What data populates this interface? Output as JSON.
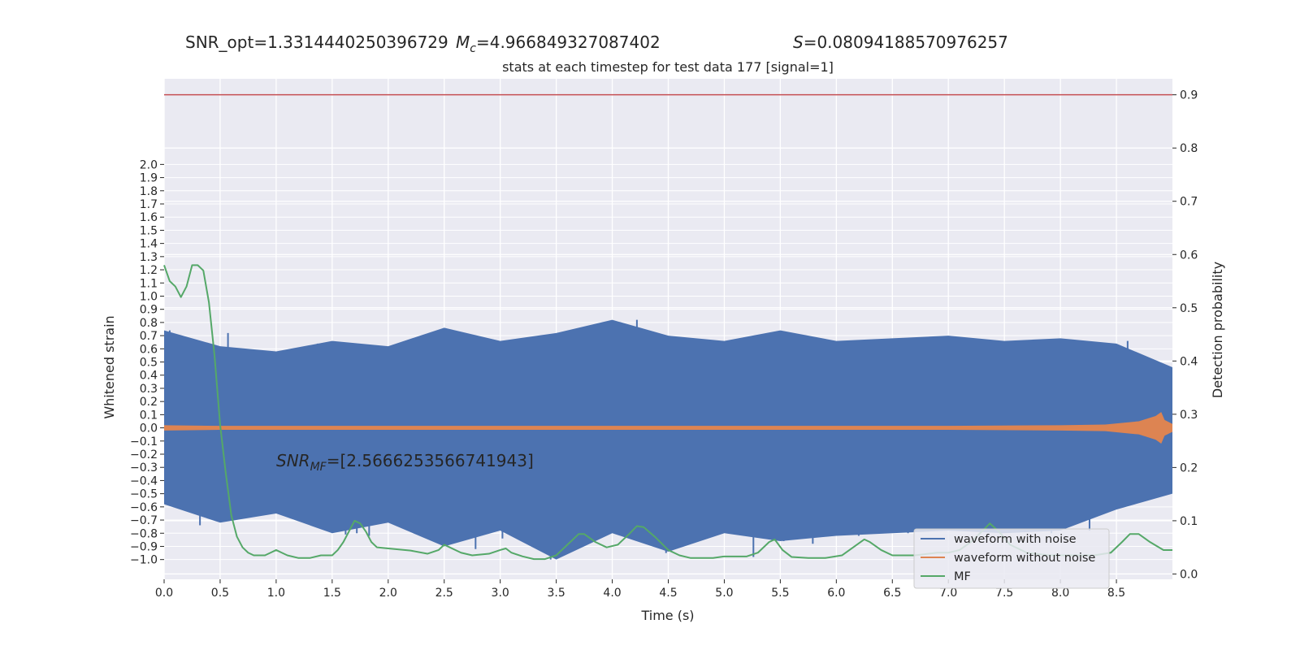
{
  "chart_data": {
    "type": "line",
    "title_parts": {
      "snr_opt": "SNR_opt=1.3314440250396729",
      "mc_symbol": "M",
      "mc_sub": "c",
      "mc_value": "=4.966849327087402",
      "s_symbol": "S",
      "s_value": "=0.08094188570976257"
    },
    "subtitle": "stats at each timestep for test data 177 [signal=1]",
    "annotation": {
      "snr_symbol": "SNR",
      "snr_sub": "MF",
      "snr_value": "=[2.5666253566741943]"
    },
    "xlabel": "Time (s)",
    "ylabel_left": "Whitened strain",
    "ylabel_right": "Detection probability",
    "xlim": [
      0.0,
      9.0
    ],
    "ylim_left": [
      -1.15,
      2.65
    ],
    "ylim_right": [
      -0.01,
      0.93
    ],
    "x_ticks": [
      "0.0",
      "0.5",
      "1.0",
      "1.5",
      "2.0",
      "2.5",
      "3.0",
      "3.5",
      "4.0",
      "4.5",
      "5.0",
      "5.5",
      "6.0",
      "6.5",
      "7.0",
      "7.5",
      "8.0",
      "8.5"
    ],
    "y_left_ticks": [
      "2.0",
      "1.9",
      "1.8",
      "1.7",
      "1.6",
      "1.5",
      "1.4",
      "1.3",
      "1.2",
      "1.1",
      "1.0",
      "0.9",
      "0.8",
      "0.7",
      "0.6",
      "0.5",
      "0.4",
      "0.3",
      "0.2",
      "0.1",
      "0.0",
      "−0.1",
      "−0.2",
      "−0.3",
      "−0.4",
      "−0.5",
      "−0.6",
      "−0.7",
      "−0.8",
      "−0.9",
      "−1.0"
    ],
    "y_right_ticks": [
      "0.9",
      "0.8",
      "0.7",
      "0.6",
      "0.5",
      "0.4",
      "0.3",
      "0.2",
      "0.1",
      "0.0"
    ],
    "threshold": 0.9,
    "grid": true,
    "legend_position": "bottom-right",
    "series": [
      {
        "name": "waveform with noise",
        "color": "#4c72b0",
        "axis": "left",
        "band": [
          [
            0.0,
            -0.58,
            0.74
          ],
          [
            0.5,
            -0.72,
            0.62
          ],
          [
            1.0,
            -0.65,
            0.58
          ],
          [
            1.5,
            -0.8,
            0.66
          ],
          [
            2.0,
            -0.72,
            0.62
          ],
          [
            2.5,
            -0.9,
            0.76
          ],
          [
            3.0,
            -0.78,
            0.66
          ],
          [
            3.5,
            -1.0,
            0.72
          ],
          [
            4.0,
            -0.8,
            0.82
          ],
          [
            4.5,
            -0.94,
            0.7
          ],
          [
            5.0,
            -0.8,
            0.66
          ],
          [
            5.5,
            -0.86,
            0.74
          ],
          [
            6.0,
            -0.82,
            0.66
          ],
          [
            6.5,
            -0.8,
            0.68
          ],
          [
            7.0,
            -0.78,
            0.7
          ],
          [
            7.5,
            -0.8,
            0.66
          ],
          [
            8.0,
            -0.78,
            0.68
          ],
          [
            8.5,
            -0.62,
            0.64
          ],
          [
            9.0,
            -0.5,
            0.46
          ]
        ],
        "spikes": [
          [
            0.05,
            0.74
          ],
          [
            0.32,
            -0.74
          ],
          [
            0.57,
            0.72
          ],
          [
            1.37,
            0.64
          ],
          [
            1.62,
            -0.81
          ],
          [
            1.72,
            -0.8
          ],
          [
            1.83,
            -0.82
          ],
          [
            2.4,
            -0.86
          ],
          [
            2.47,
            0.66
          ],
          [
            2.78,
            -0.92
          ],
          [
            3.02,
            -0.84
          ],
          [
            3.25,
            -0.78
          ],
          [
            3.45,
            -1.0
          ],
          [
            3.76,
            0.74
          ],
          [
            4.22,
            0.82
          ],
          [
            4.48,
            -0.95
          ],
          [
            4.63,
            -0.84
          ],
          [
            5.26,
            -0.98
          ],
          [
            5.53,
            -0.86
          ],
          [
            5.79,
            -0.88
          ],
          [
            6.2,
            -0.82
          ],
          [
            6.64,
            -0.8
          ],
          [
            7.1,
            -0.78
          ],
          [
            7.48,
            -0.8
          ],
          [
            7.92,
            -0.8
          ],
          [
            8.26,
            -0.78
          ],
          [
            8.6,
            0.66
          ]
        ]
      },
      {
        "name": "waveform without noise",
        "color": "#dd8452",
        "axis": "left",
        "envelope": [
          [
            0.0,
            0.02
          ],
          [
            0.5,
            0.015
          ],
          [
            1.0,
            0.015
          ],
          [
            2.0,
            0.015
          ],
          [
            3.0,
            0.015
          ],
          [
            4.0,
            0.015
          ],
          [
            5.0,
            0.015
          ],
          [
            6.0,
            0.015
          ],
          [
            7.0,
            0.015
          ],
          [
            8.0,
            0.02
          ],
          [
            8.4,
            0.025
          ],
          [
            8.7,
            0.05
          ],
          [
            8.85,
            0.09
          ],
          [
            8.9,
            0.12
          ],
          [
            8.93,
            0.06
          ],
          [
            9.0,
            0.03
          ]
        ]
      },
      {
        "name": "MF",
        "color": "#55a868",
        "axis": "right",
        "points": [
          [
            0.0,
            0.58
          ],
          [
            0.05,
            0.55
          ],
          [
            0.1,
            0.54
          ],
          [
            0.15,
            0.52
          ],
          [
            0.2,
            0.54
          ],
          [
            0.25,
            0.58
          ],
          [
            0.3,
            0.58
          ],
          [
            0.35,
            0.57
          ],
          [
            0.4,
            0.51
          ],
          [
            0.45,
            0.41
          ],
          [
            0.5,
            0.28
          ],
          [
            0.55,
            0.19
          ],
          [
            0.6,
            0.11
          ],
          [
            0.65,
            0.07
          ],
          [
            0.7,
            0.05
          ],
          [
            0.75,
            0.04
          ],
          [
            0.8,
            0.035
          ],
          [
            0.85,
            0.035
          ],
          [
            0.9,
            0.035
          ],
          [
            0.95,
            0.04
          ],
          [
            1.0,
            0.045
          ],
          [
            1.05,
            0.04
          ],
          [
            1.1,
            0.035
          ],
          [
            1.2,
            0.03
          ],
          [
            1.3,
            0.03
          ],
          [
            1.4,
            0.035
          ],
          [
            1.5,
            0.035
          ],
          [
            1.55,
            0.045
          ],
          [
            1.6,
            0.06
          ],
          [
            1.65,
            0.08
          ],
          [
            1.7,
            0.1
          ],
          [
            1.75,
            0.095
          ],
          [
            1.8,
            0.08
          ],
          [
            1.85,
            0.06
          ],
          [
            1.9,
            0.05
          ],
          [
            2.0,
            0.048
          ],
          [
            2.2,
            0.044
          ],
          [
            2.35,
            0.038
          ],
          [
            2.45,
            0.045
          ],
          [
            2.5,
            0.055
          ],
          [
            2.55,
            0.05
          ],
          [
            2.65,
            0.04
          ],
          [
            2.75,
            0.035
          ],
          [
            2.9,
            0.038
          ],
          [
            3.0,
            0.045
          ],
          [
            3.05,
            0.048
          ],
          [
            3.1,
            0.04
          ],
          [
            3.2,
            0.033
          ],
          [
            3.3,
            0.028
          ],
          [
            3.4,
            0.028
          ],
          [
            3.5,
            0.035
          ],
          [
            3.6,
            0.055
          ],
          [
            3.7,
            0.075
          ],
          [
            3.75,
            0.075
          ],
          [
            3.85,
            0.06
          ],
          [
            3.95,
            0.05
          ],
          [
            4.05,
            0.055
          ],
          [
            4.15,
            0.075
          ],
          [
            4.22,
            0.09
          ],
          [
            4.28,
            0.088
          ],
          [
            4.38,
            0.07
          ],
          [
            4.5,
            0.045
          ],
          [
            4.6,
            0.035
          ],
          [
            4.7,
            0.03
          ],
          [
            4.9,
            0.03
          ],
          [
            5.0,
            0.033
          ],
          [
            5.2,
            0.033
          ],
          [
            5.3,
            0.04
          ],
          [
            5.4,
            0.06
          ],
          [
            5.45,
            0.065
          ],
          [
            5.52,
            0.045
          ],
          [
            5.6,
            0.032
          ],
          [
            5.75,
            0.03
          ],
          [
            5.9,
            0.03
          ],
          [
            6.05,
            0.035
          ],
          [
            6.15,
            0.05
          ],
          [
            6.25,
            0.065
          ],
          [
            6.3,
            0.06
          ],
          [
            6.4,
            0.045
          ],
          [
            6.5,
            0.035
          ],
          [
            6.7,
            0.035
          ],
          [
            6.9,
            0.04
          ],
          [
            7.0,
            0.04
          ],
          [
            7.1,
            0.045
          ],
          [
            7.2,
            0.06
          ],
          [
            7.3,
            0.08
          ],
          [
            7.37,
            0.095
          ],
          [
            7.45,
            0.08
          ],
          [
            7.55,
            0.055
          ],
          [
            7.7,
            0.04
          ],
          [
            7.9,
            0.035
          ],
          [
            8.1,
            0.035
          ],
          [
            8.3,
            0.035
          ],
          [
            8.45,
            0.04
          ],
          [
            8.55,
            0.06
          ],
          [
            8.62,
            0.075
          ],
          [
            8.7,
            0.075
          ],
          [
            8.8,
            0.06
          ],
          [
            8.92,
            0.045
          ],
          [
            9.0,
            0.045
          ]
        ]
      }
    ]
  },
  "colors": {
    "plot_bg": "#eaeaf2",
    "grid": "#ffffff",
    "threshold": "#c44e52"
  }
}
